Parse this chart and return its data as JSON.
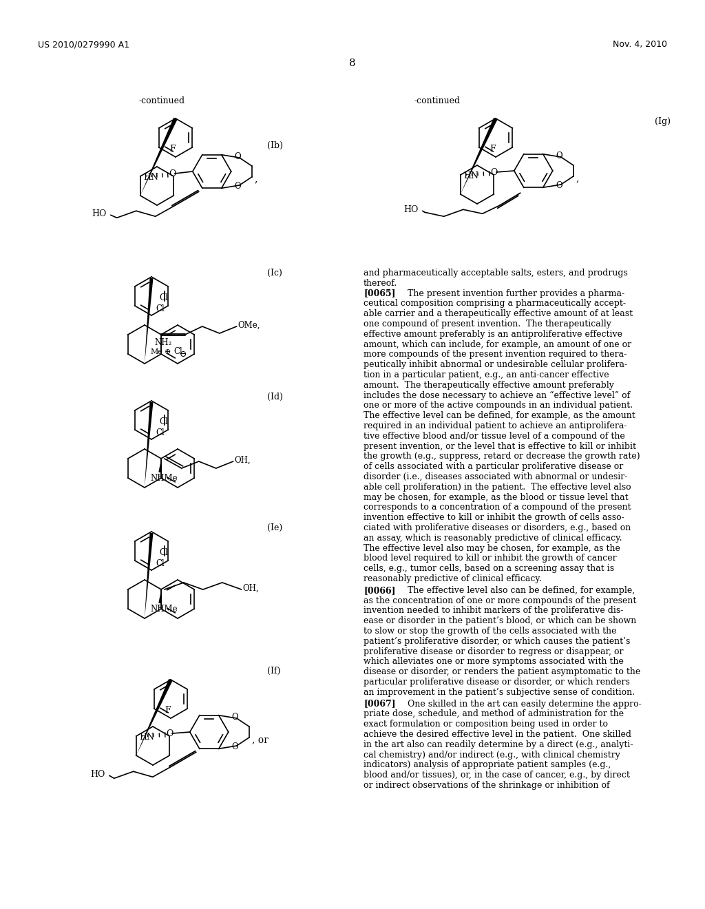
{
  "header_left": "US 2010/0279990 A1",
  "header_right": "Nov. 4, 2010",
  "page_number": "8",
  "background_color": "#ffffff",
  "text_color": "#000000",
  "left_continued": "-continued",
  "right_continued": "-continued",
  "label_Ib": "(Ib)",
  "label_Ic": "(Ic)",
  "label_Id": "(Id)",
  "label_Ie": "(Ie)",
  "label_If": "(If)",
  "label_Ig": "(Ig)",
  "right_text_para1": [
    "and pharmaceutically acceptable salts, esters, and prodrugs",
    "thereof."
  ],
  "right_text_para2_label": "[0065]",
  "right_text_para2": [
    "The present invention further provides a pharma-",
    "ceutical composition comprising a pharmaceutically accept-",
    "able carrier and a therapeutically effective amount of at least",
    "one compound of present invention.  The therapeutically",
    "effective amount preferably is an antiproliferative effective",
    "amount, which can include, for example, an amount of one or",
    "more compounds of the present invention required to thera-",
    "peutically inhibit abnormal or undesirable cellular prolifera-",
    "tion in a particular patient, e.g., an anti-cancer effective",
    "amount.  The therapeutically effective amount preferably",
    "includes the dose necessary to achieve an “effective level” of",
    "one or more of the active compounds in an individual patient.",
    "The effective level can be defined, for example, as the amount",
    "required in an individual patient to achieve an antiprolifera-",
    "tive effective blood and/or tissue level of a compound of the",
    "present invention, or the level that is effective to kill or inhibit",
    "the growth (e.g., suppress, retard or decrease the growth rate)",
    "of cells associated with a particular proliferative disease or",
    "disorder (i.e., diseases associated with abnormal or undesir-",
    "able cell proliferation) in the patient.  The effective level also",
    "may be chosen, for example, as the blood or tissue level that",
    "corresponds to a concentration of a compound of the present",
    "invention effective to kill or inhibit the growth of cells asso-",
    "ciated with proliferative diseases or disorders, e.g., based on",
    "an assay, which is reasonably predictive of clinical efficacy.",
    "The effective level also may be chosen, for example, as the",
    "blood level required to kill or inhibit the growth of cancer",
    "cells, e.g., tumor cells, based on a screening assay that is",
    "reasonably predictive of clinical efficacy."
  ],
  "right_text_para3_label": "[0066]",
  "right_text_para3": [
    "The effective level also can be defined, for example,",
    "as the concentration of one or more compounds of the present",
    "invention needed to inhibit markers of the proliferative dis-",
    "ease or disorder in the patient’s blood, or which can be shown",
    "to slow or stop the growth of the cells associated with the",
    "patient’s proliferative disorder, or which causes the patient’s",
    "proliferative disease or disorder to regress or disappear, or",
    "which alleviates one or more symptoms associated with the",
    "disease or disorder, or renders the patient asymptomatic to the",
    "particular proliferative disease or disorder, or which renders",
    "an improvement in the patient’s subjective sense of condition."
  ],
  "right_text_para4_label": "[0067]",
  "right_text_para4": [
    "One skilled in the art can easily determine the appro-",
    "priate dose, schedule, and method of administration for the",
    "exact formulation or composition being used in order to",
    "achieve the desired effective level in the patient.  One skilled",
    "in the art also can readily determine by a direct (e.g., analyti-",
    "cal chemistry) and/or indirect (e.g., with clinical chemistry",
    "indicators) analysis of appropriate patient samples (e.g.,",
    "blood and/or tissues), or, in the case of cancer, e.g., by direct",
    "or indirect observations of the shrinkage or inhibition of"
  ]
}
